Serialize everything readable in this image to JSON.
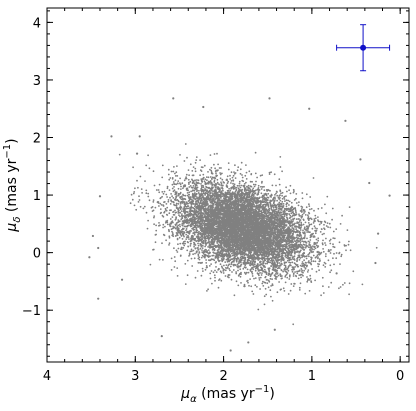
{
  "chart_data": {
    "type": "scatter",
    "title": "",
    "xlabel": "μ_α (mas yr⁻¹)",
    "ylabel": "μ_δ (mas yr⁻¹)",
    "xlim": [
      4.0,
      -0.1
    ],
    "ylim": [
      -1.9,
      4.25
    ],
    "x_ticks": [
      4,
      3,
      2,
      1,
      0
    ],
    "x_tick_labels": [
      "4",
      "3",
      "2",
      "1",
      "0"
    ],
    "y_ticks": [
      -1,
      0,
      1,
      2,
      3,
      4
    ],
    "y_tick_labels": [
      "−1",
      "0",
      "1",
      "2",
      "3",
      "4"
    ],
    "grid": false,
    "legend": "none",
    "colors": {
      "points": "#808080",
      "error_bar": "#1010c8"
    },
    "series": [
      {
        "kind": "points",
        "center": [
          1.8,
          0.45
        ],
        "spread": [
          0.38,
          0.42
        ],
        "count": 9000,
        "outliers": [
          [
            3.27,
            2.02
          ],
          [
            2.95,
            2.02
          ],
          [
            3.4,
            0.98
          ],
          [
            3.48,
            0.29
          ],
          [
            3.42,
            0.08
          ],
          [
            3.52,
            -0.08
          ],
          [
            3.42,
            -0.8
          ],
          [
            2.57,
            2.68
          ],
          [
            2.23,
            2.53
          ],
          [
            1.48,
            2.68
          ],
          [
            1.03,
            2.5
          ],
          [
            0.62,
            2.29
          ],
          [
            0.25,
            0.33
          ],
          [
            0.28,
            -0.18
          ],
          [
            0.12,
            0.99
          ],
          [
            0.35,
            1.21
          ],
          [
            1.92,
            -1.7
          ],
          [
            1.72,
            -1.56
          ],
          [
            2.7,
            -1.45
          ],
          [
            1.42,
            -1.34
          ],
          [
            3.15,
            -0.47
          ],
          [
            0.72,
            -0.36
          ],
          [
            0.45,
            1.62
          ],
          [
            2.98,
            1.72
          ]
        ]
      },
      {
        "kind": "error_bar",
        "x": 0.42,
        "y": 3.56,
        "xerr": 0.3,
        "yerr": 0.4
      }
    ]
  }
}
